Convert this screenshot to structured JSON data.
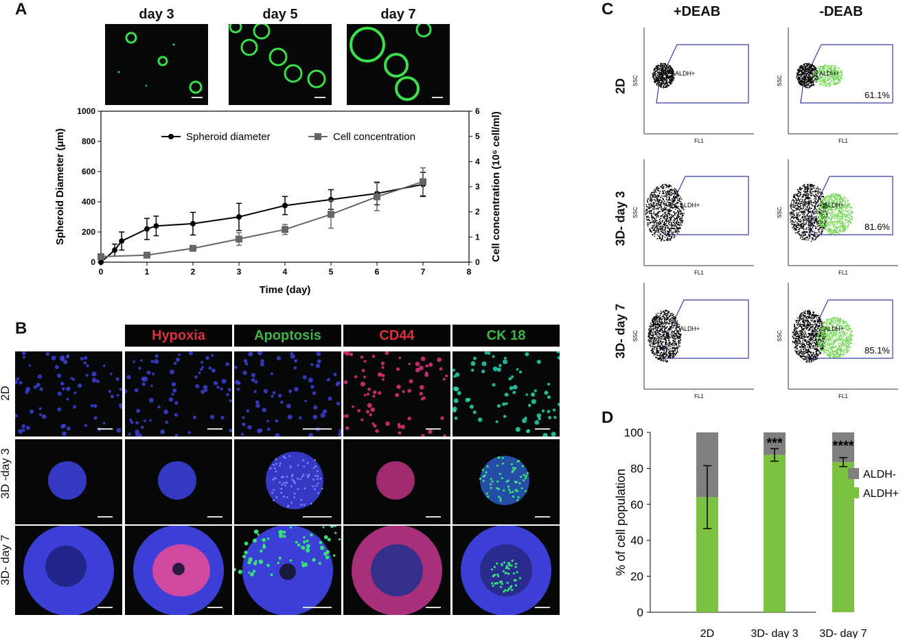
{
  "panels": {
    "a": "A",
    "b": "B",
    "c": "C",
    "d": "D"
  },
  "panel_a": {
    "image_labels": [
      "day 3",
      "day 5",
      "day 7"
    ],
    "chart_data": {
      "type": "line",
      "xlabel": "Time (day)",
      "ylabel": "Spheroid Diameter (μm)",
      "y2label": "Cell concentration (10⁶ cell/ml)",
      "xlim": [
        0,
        8
      ],
      "ylim": [
        0,
        1000
      ],
      "y2lim": [
        0,
        6
      ],
      "xticks": [
        "0",
        "1",
        "2",
        "3",
        "4",
        "5",
        "6",
        "7",
        "8"
      ],
      "yticks": [
        "0",
        "200",
        "400",
        "600",
        "800",
        "1000"
      ],
      "y2ticks": [
        "0",
        "1",
        "2",
        "3",
        "4",
        "5",
        "6"
      ],
      "legend_placement": "top",
      "series": [
        {
          "name": "Spheroid diameter",
          "axis": "left",
          "marker": "circle",
          "color": "#000000",
          "x": [
            0,
            0.3,
            0.45,
            1,
            1.2,
            2,
            3,
            4,
            5,
            6,
            7
          ],
          "y": [
            0,
            80,
            140,
            220,
            240,
            255,
            300,
            375,
            415,
            455,
            515
          ],
          "err": [
            0,
            40,
            60,
            70,
            65,
            75,
            90,
            60,
            65,
            75,
            80
          ]
        },
        {
          "name": "Cell concentration",
          "axis": "right",
          "marker": "square",
          "color": "#666666",
          "x": [
            0,
            1,
            2,
            3,
            4,
            5,
            6,
            7
          ],
          "y": [
            0.22,
            0.28,
            0.55,
            0.92,
            1.3,
            1.9,
            2.6,
            3.2
          ],
          "err": [
            0.05,
            0.05,
            0.06,
            0.25,
            0.2,
            0.55,
            0.55,
            0.55
          ]
        }
      ]
    }
  },
  "panel_b": {
    "col_headers": [
      {
        "text": "Hypoxia",
        "color": "#d9333f"
      },
      {
        "text": "Apoptosis",
        "color": "#3fb54a"
      },
      {
        "text": "CD44",
        "color": "#d9333f"
      },
      {
        "text": "CK 18",
        "color": "#3fb54a"
      }
    ],
    "row_labels": [
      "2D",
      "3D -day 3",
      "3D- day 7"
    ]
  },
  "panel_c": {
    "col_headers": [
      "+DEAB",
      "-DEAB"
    ],
    "row_labels": [
      "2D",
      "3D- day 3",
      "3D- day 7"
    ],
    "axis_x": "FL1",
    "axis_y": "SSC",
    "gate_label": "ALDH+",
    "percentages": [
      "61.1%",
      "81.6%",
      "85.1%"
    ]
  },
  "panel_d": {
    "chart_data": {
      "type": "bar",
      "stacked": true,
      "categories": [
        "2D",
        "3D- day 3",
        "3D- day 7"
      ],
      "ylabel": "% of cell population",
      "ylim": [
        0,
        100
      ],
      "yticks": [
        "0",
        "20",
        "40",
        "60",
        "80",
        "100"
      ],
      "legend_placement": "right",
      "series": [
        {
          "name": "ALDH-",
          "color": "#7f7f7f",
          "values": [
            36,
            12.5,
            16.5
          ]
        },
        {
          "name": "ALDH+",
          "color": "#7cc142",
          "values": [
            64,
            87.5,
            83.5
          ],
          "err": [
            17.5,
            3.5,
            2.5
          ]
        }
      ],
      "annotations": [
        "",
        "***",
        "****"
      ]
    }
  }
}
